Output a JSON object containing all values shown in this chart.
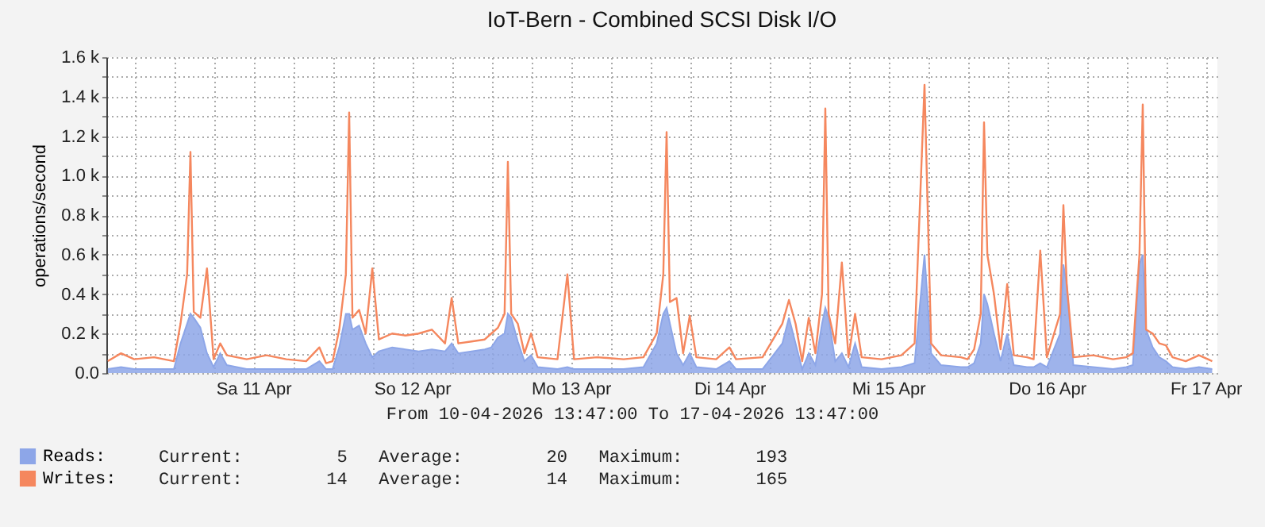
{
  "chart_data": {
    "type": "area",
    "title": "IoT-Bern - Combined SCSI Disk I/O",
    "ylabel": "operations/second",
    "annotations": [
      "From 10-04-2026 13:47:00 To 17-04-2026 13:47:00",
      "Current:         5   Average:        20   Maximum:       193",
      "Current:        14   Average:        14   Maximum:       165"
    ],
    "x": [
      "2026-04-10T14:00",
      "2026-04-10T16:00",
      "2026-04-10T18:00",
      "2026-04-10T21:00",
      "2026-04-11T00:00",
      "2026-04-11T01:00",
      "2026-04-11T02:00",
      "2026-04-11T02:30",
      "2026-04-11T03:00",
      "2026-04-11T04:00",
      "2026-04-11T05:00",
      "2026-04-11T06:00",
      "2026-04-11T07:00",
      "2026-04-11T08:00",
      "2026-04-11T11:00",
      "2026-04-11T14:00",
      "2026-04-11T17:00",
      "2026-04-11T20:00",
      "2026-04-11T22:00",
      "2026-04-11T23:00",
      "2026-04-12T00:00",
      "2026-04-12T01:00",
      "2026-04-12T02:00",
      "2026-04-12T02:30",
      "2026-04-12T03:00",
      "2026-04-12T04:00",
      "2026-04-12T05:00",
      "2026-04-12T06:00",
      "2026-04-12T07:00",
      "2026-04-12T09:00",
      "2026-04-12T11:00",
      "2026-04-12T13:00",
      "2026-04-12T15:00",
      "2026-04-12T17:00",
      "2026-04-12T18:00",
      "2026-04-12T19:00",
      "2026-04-12T21:00",
      "2026-04-12T23:00",
      "2026-04-13T00:00",
      "2026-04-13T01:00",
      "2026-04-13T02:00",
      "2026-04-13T02:30",
      "2026-04-13T03:00",
      "2026-04-13T04:00",
      "2026-04-13T05:00",
      "2026-04-13T06:00",
      "2026-04-13T07:00",
      "2026-04-13T10:00",
      "2026-04-13T11:30",
      "2026-04-13T12:30",
      "2026-04-13T16:00",
      "2026-04-13T20:00",
      "2026-04-13T23:00",
      "2026-04-14T01:00",
      "2026-04-14T02:00",
      "2026-04-14T02:30",
      "2026-04-14T03:00",
      "2026-04-14T04:00",
      "2026-04-14T05:00",
      "2026-04-14T06:00",
      "2026-04-14T07:00",
      "2026-04-14T10:00",
      "2026-04-14T12:00",
      "2026-04-14T13:00",
      "2026-04-14T17:00",
      "2026-04-14T20:00",
      "2026-04-14T21:00",
      "2026-04-14T22:00",
      "2026-04-14T23:00",
      "2026-04-15T00:00",
      "2026-04-15T01:00",
      "2026-04-15T02:00",
      "2026-04-15T02:30",
      "2026-04-15T03:00",
      "2026-04-15T04:00",
      "2026-04-15T05:00",
      "2026-04-15T06:00",
      "2026-04-15T07:00",
      "2026-04-15T08:00",
      "2026-04-15T11:00",
      "2026-04-15T14:00",
      "2026-04-15T16:00",
      "2026-04-15T17:30",
      "2026-04-15T18:30",
      "2026-04-15T20:00",
      "2026-04-15T23:00",
      "2026-04-16T00:00",
      "2026-04-16T01:00",
      "2026-04-16T02:00",
      "2026-04-16T02:30",
      "2026-04-16T03:00",
      "2026-04-16T04:00",
      "2026-04-16T05:00",
      "2026-04-16T06:00",
      "2026-04-16T07:00",
      "2026-04-16T09:00",
      "2026-04-16T10:00",
      "2026-04-16T11:00",
      "2026-04-16T12:00",
      "2026-04-16T14:00",
      "2026-04-16T14:30",
      "2026-04-16T15:00",
      "2026-04-16T16:00",
      "2026-04-16T19:00",
      "2026-04-16T22:00",
      "2026-04-17T00:00",
      "2026-04-17T01:00",
      "2026-04-17T02:00",
      "2026-04-17T02:30",
      "2026-04-17T03:00",
      "2026-04-17T04:00",
      "2026-04-17T05:00",
      "2026-04-17T06:00",
      "2026-04-17T07:00",
      "2026-04-17T09:00",
      "2026-04-17T11:00",
      "2026-04-17T13:00"
    ],
    "series": [
      {
        "name": "Reads:",
        "color": "#8da6e8",
        "values": [
          20,
          30,
          20,
          20,
          20,
          150,
          250,
          300,
          280,
          230,
          100,
          30,
          100,
          40,
          20,
          20,
          20,
          20,
          60,
          20,
          20,
          130,
          300,
          300,
          220,
          240,
          150,
          80,
          110,
          130,
          120,
          110,
          120,
          110,
          150,
          100,
          110,
          120,
          130,
          180,
          200,
          300,
          280,
          160,
          60,
          90,
          30,
          20,
          30,
          20,
          20,
          20,
          30,
          150,
          300,
          330,
          250,
          100,
          40,
          100,
          30,
          20,
          60,
          20,
          20,
          150,
          280,
          150,
          20,
          100,
          40,
          250,
          330,
          280,
          60,
          100,
          30,
          150,
          30,
          20,
          30,
          50,
          600,
          100,
          40,
          30,
          30,
          50,
          150,
          400,
          350,
          200,
          60,
          200,
          40,
          30,
          30,
          50,
          30,
          200,
          550,
          450,
          40,
          30,
          20,
          30,
          40,
          550,
          600,
          220,
          130,
          80,
          60,
          30,
          20,
          30,
          20
        ]
      },
      {
        "name": "Writes:",
        "type": "line",
        "color": "#f5875e",
        "values": [
          60,
          100,
          70,
          80,
          60,
          250,
          500,
          1120,
          310,
          280,
          530,
          70,
          150,
          90,
          70,
          90,
          70,
          60,
          130,
          50,
          60,
          220,
          500,
          1320,
          280,
          320,
          200,
          530,
          170,
          200,
          190,
          200,
          220,
          150,
          380,
          150,
          160,
          170,
          200,
          230,
          300,
          1070,
          300,
          250,
          100,
          200,
          80,
          70,
          500,
          70,
          80,
          70,
          80,
          200,
          500,
          1220,
          360,
          380,
          100,
          290,
          80,
          70,
          130,
          70,
          80,
          250,
          370,
          250,
          60,
          280,
          100,
          400,
          1340,
          300,
          150,
          560,
          80,
          300,
          80,
          70,
          90,
          150,
          1460,
          150,
          90,
          80,
          70,
          120,
          300,
          1270,
          600,
          400,
          120,
          450,
          90,
          80,
          70,
          620,
          80,
          300,
          850,
          450,
          80,
          90,
          70,
          80,
          100,
          600,
          1360,
          220,
          200,
          150,
          140,
          80,
          60,
          90,
          60
        ]
      }
    ],
    "xlim": [
      "2026-04-10T13:47",
      "2026-04-17T13:47"
    ],
    "xticks": [
      {
        "value": "2026-04-10T18:00",
        "label": null
      },
      {
        "value": "2026-04-11T00:00",
        "label": null
      },
      {
        "value": "2026-04-11T06:00",
        "label": null
      },
      {
        "value": "2026-04-11T12:00",
        "label": "Sa 11 Apr"
      },
      {
        "value": "2026-04-11T18:00",
        "label": null
      },
      {
        "value": "2026-04-12T00:00",
        "label": null
      },
      {
        "value": "2026-04-12T06:00",
        "label": null
      },
      {
        "value": "2026-04-12T12:00",
        "label": "So 12 Apr"
      },
      {
        "value": "2026-04-12T18:00",
        "label": null
      },
      {
        "value": "2026-04-13T00:00",
        "label": null
      },
      {
        "value": "2026-04-13T06:00",
        "label": null
      },
      {
        "value": "2026-04-13T12:00",
        "label": "Mo 13 Apr"
      },
      {
        "value": "2026-04-13T18:00",
        "label": null
      },
      {
        "value": "2026-04-14T00:00",
        "label": null
      },
      {
        "value": "2026-04-14T06:00",
        "label": null
      },
      {
        "value": "2026-04-14T12:00",
        "label": "Di 14 Apr"
      },
      {
        "value": "2026-04-14T18:00",
        "label": null
      },
      {
        "value": "2026-04-15T00:00",
        "label": null
      },
      {
        "value": "2026-04-15T06:00",
        "label": null
      },
      {
        "value": "2026-04-15T12:00",
        "label": "Mi 15 Apr"
      },
      {
        "value": "2026-04-15T18:00",
        "label": null
      },
      {
        "value": "2026-04-16T00:00",
        "label": null
      },
      {
        "value": "2026-04-16T06:00",
        "label": null
      },
      {
        "value": "2026-04-16T12:00",
        "label": "Do 16 Apr"
      },
      {
        "value": "2026-04-16T18:00",
        "label": null
      },
      {
        "value": "2026-04-17T00:00",
        "label": null
      },
      {
        "value": "2026-04-17T06:00",
        "label": null
      },
      {
        "value": "2026-04-17T12:00",
        "label": "Fr 17 Apr"
      }
    ],
    "ylim": [
      0,
      1600
    ],
    "yticks": [
      {
        "value": 0,
        "label": "0.0"
      },
      {
        "value": 100,
        "label": null
      },
      {
        "value": 200,
        "label": "0.2 k"
      },
      {
        "value": 300,
        "label": null
      },
      {
        "value": 400,
        "label": "0.4 k"
      },
      {
        "value": 500,
        "label": null
      },
      {
        "value": 600,
        "label": "0.6 k"
      },
      {
        "value": 700,
        "label": null
      },
      {
        "value": 800,
        "label": "0.8 k"
      },
      {
        "value": 900,
        "label": null
      },
      {
        "value": 1000,
        "label": "1.0 k"
      },
      {
        "value": 1100,
        "label": null
      },
      {
        "value": 1200,
        "label": "1.2 k"
      },
      {
        "value": 1300,
        "label": null
      },
      {
        "value": 1400,
        "label": "1.4 k"
      },
      {
        "value": 1500,
        "label": null
      },
      {
        "value": 1600,
        "label": "1.6 k"
      }
    ],
    "grid": true,
    "legend": "bottom left"
  }
}
